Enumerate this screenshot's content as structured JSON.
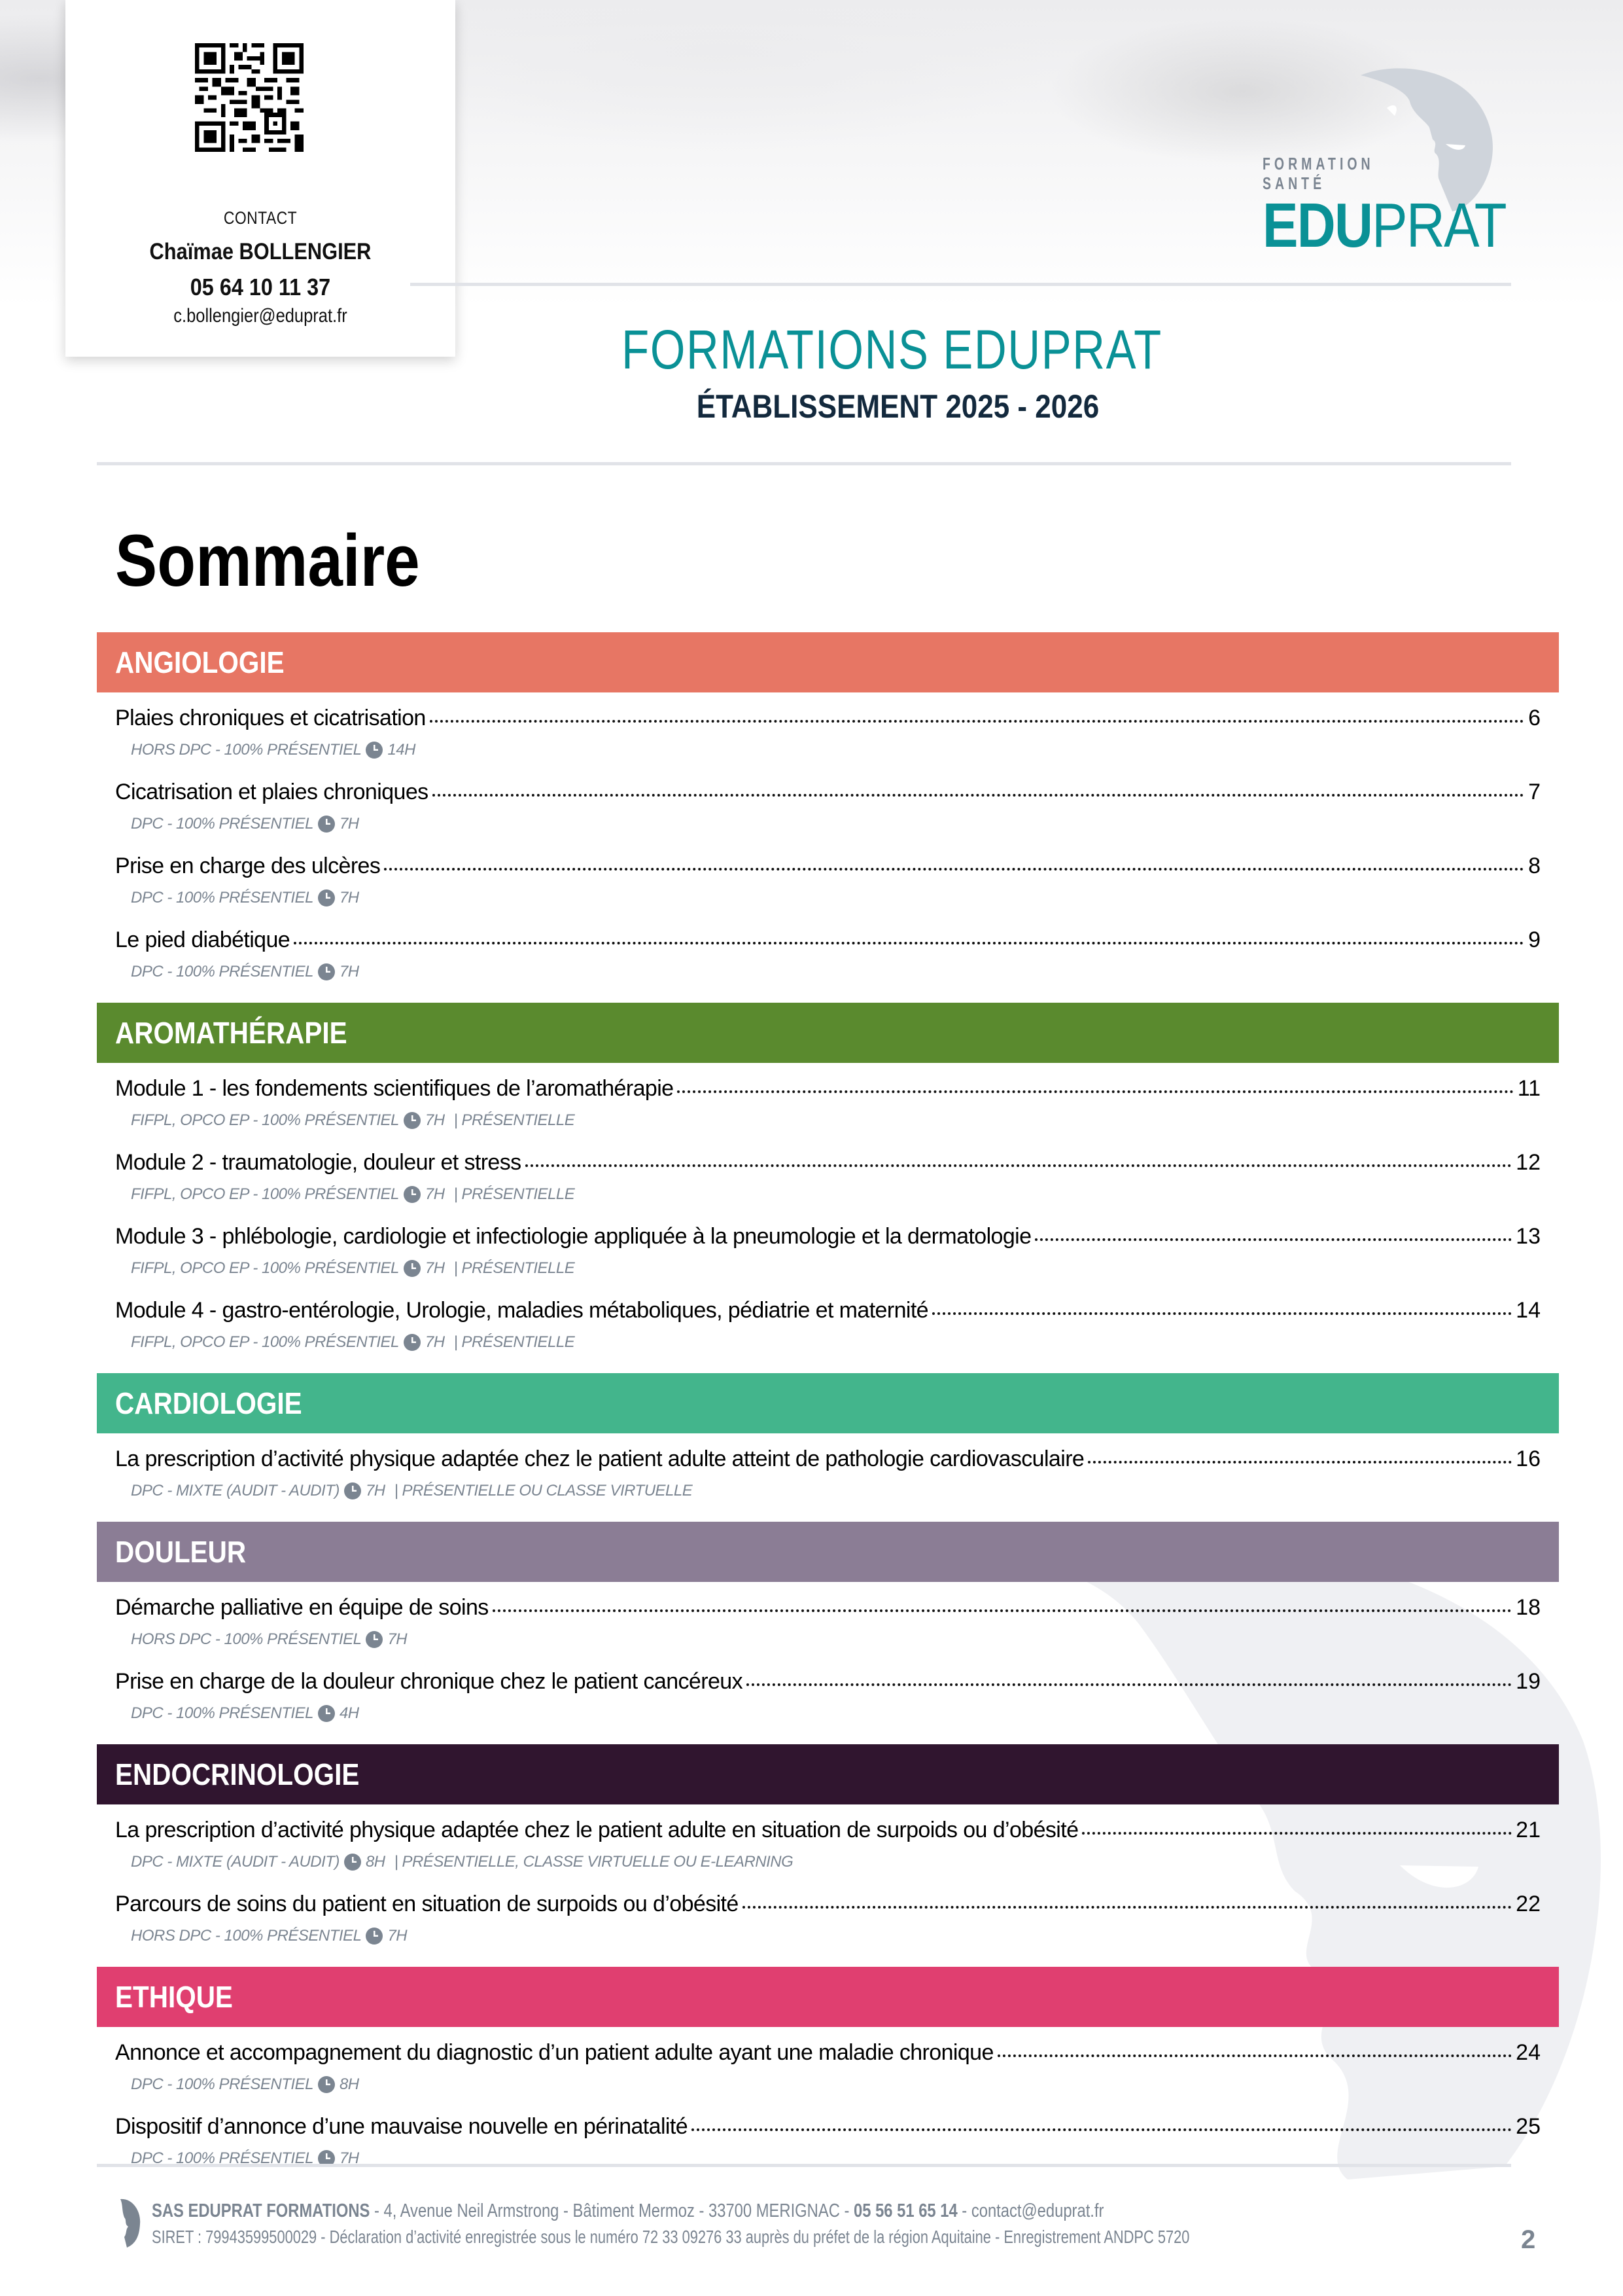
{
  "header": {
    "contact": {
      "label": "CONTACT",
      "name": "Chaïmae BOLLENGIER",
      "phone": "05 64 10 11 37",
      "email": "c.bollengier@eduprat.fr"
    },
    "logo": {
      "tagline_line1": "FORMATION",
      "tagline_line2": "SANTÉ",
      "brand_bold": "EDU",
      "brand_light": "PRAT"
    },
    "title": "FORMATIONS EDUPRAT",
    "subtitle": "ÉTABLISSEMENT 2025 - 2026"
  },
  "page_title": "Sommaire",
  "colors": {
    "brand_teal": "#0a9196",
    "meta_gray": "#7b8591"
  },
  "sections": [
    {
      "name": "ANGIOLOGIE",
      "color": "#e77664",
      "entries": [
        {
          "title": "Plaies chroniques et cicatrisation",
          "page": "6",
          "meta": "HORS DPC - 100% PRÉSENTIEL",
          "duration": "14H",
          "extra": ""
        },
        {
          "title": "Cicatrisation et plaies chroniques",
          "page": "7",
          "meta": "DPC - 100% PRÉSENTIEL",
          "duration": "7H",
          "extra": ""
        },
        {
          "title": "Prise en charge des ulcères",
          "page": "8",
          "meta": "DPC - 100% PRÉSENTIEL",
          "duration": "7H",
          "extra": ""
        },
        {
          "title": "Le pied diabétique",
          "page": "9",
          "meta": "DPC - 100% PRÉSENTIEL",
          "duration": "7H",
          "extra": ""
        }
      ]
    },
    {
      "name": "AROMATHÉRAPIE",
      "color": "#5a8a2e",
      "entries": [
        {
          "title": "Module 1 - les fondements scientifiques de l’aromathérapie",
          "page": "11",
          "meta": "FIFPL, OPCO EP - 100% PRÉSENTIEL",
          "duration": "7H",
          "extra": "| PRÉSENTIELLE"
        },
        {
          "title": "Module 2 - traumatologie, douleur et stress",
          "page": "12",
          "meta": "FIFPL, OPCO EP - 100% PRÉSENTIEL",
          "duration": "7H",
          "extra": "| PRÉSENTIELLE"
        },
        {
          "title": "Module 3 - phlébologie, cardiologie et infectiologie appliquée à la pneumologie et la dermatologie",
          "page": "13",
          "meta": "FIFPL, OPCO EP - 100% PRÉSENTIEL",
          "duration": "7H",
          "extra": "| PRÉSENTIELLE"
        },
        {
          "title": "Module 4 - gastro-entérologie, Urologie, maladies métaboliques, pédiatrie et maternité",
          "page": "14",
          "meta": "FIFPL, OPCO EP - 100% PRÉSENTIEL",
          "duration": "7H",
          "extra": "| PRÉSENTIELLE"
        }
      ]
    },
    {
      "name": "CARDIOLOGIE",
      "color": "#43b58c",
      "entries": [
        {
          "title": "La prescription d’activité physique adaptée chez le patient adulte atteint de pathologie cardiovasculaire",
          "page": "16",
          "meta": "DPC - MIXTE (AUDIT - AUDIT)",
          "duration": "7H",
          "extra": "| PRÉSENTIELLE OU CLASSE VIRTUELLE"
        }
      ]
    },
    {
      "name": "DOULEUR",
      "color": "#8b7d95",
      "entries": [
        {
          "title": "Démarche palliative en équipe de soins",
          "page": "18",
          "meta": "HORS DPC - 100% PRÉSENTIEL",
          "duration": "7H",
          "extra": ""
        },
        {
          "title": "Prise en charge de la douleur chronique chez le patient cancéreux",
          "page": "19",
          "meta": "DPC - 100% PRÉSENTIEL",
          "duration": "4H",
          "extra": ""
        }
      ]
    },
    {
      "name": "ENDOCRINOLOGIE",
      "color": "#30152f",
      "entries": [
        {
          "title": "La prescription d’activité physique adaptée chez le patient adulte en situation de surpoids ou d’obésité",
          "page": "21",
          "meta": "DPC - MIXTE (AUDIT - AUDIT)",
          "duration": "8H",
          "extra": "| PRÉSENTIELLE, CLASSE VIRTUELLE OU E-LEARNING"
        },
        {
          "title": "Parcours de soins du patient en situation de surpoids ou d’obésité",
          "page": "22",
          "meta": "HORS DPC - 100% PRÉSENTIEL",
          "duration": "7H",
          "extra": ""
        }
      ]
    },
    {
      "name": "ETHIQUE",
      "color": "#e03f70",
      "entries": [
        {
          "title": "Annonce et accompagnement du diagnostic d’un patient adulte ayant une maladie chronique",
          "page": "24",
          "meta": "DPC - 100% PRÉSENTIEL",
          "duration": "8H",
          "extra": ""
        },
        {
          "title": "Dispositif d’annonce d’une mauvaise nouvelle en périnatalité",
          "page": "25",
          "meta": "DPC - 100% PRÉSENTIEL",
          "duration": "7H",
          "extra": ""
        }
      ]
    }
  ],
  "footer": {
    "company": "SAS EDUPRAT FORMATIONS",
    "address": " - 4, Avenue Neil Armstrong - Bâtiment Mermoz - 33700 MERIGNAC - ",
    "phone": "05 56 51 65 14",
    "email_part": " - contact@eduprat.fr",
    "legal": "SIRET : 79943599500029 - Déclaration d’activité enregistrée sous le numéro 72 33 09276 33 auprès du préfet de la région Aquitaine - Enregistrement ANDPC 5720",
    "page_number": "2"
  }
}
